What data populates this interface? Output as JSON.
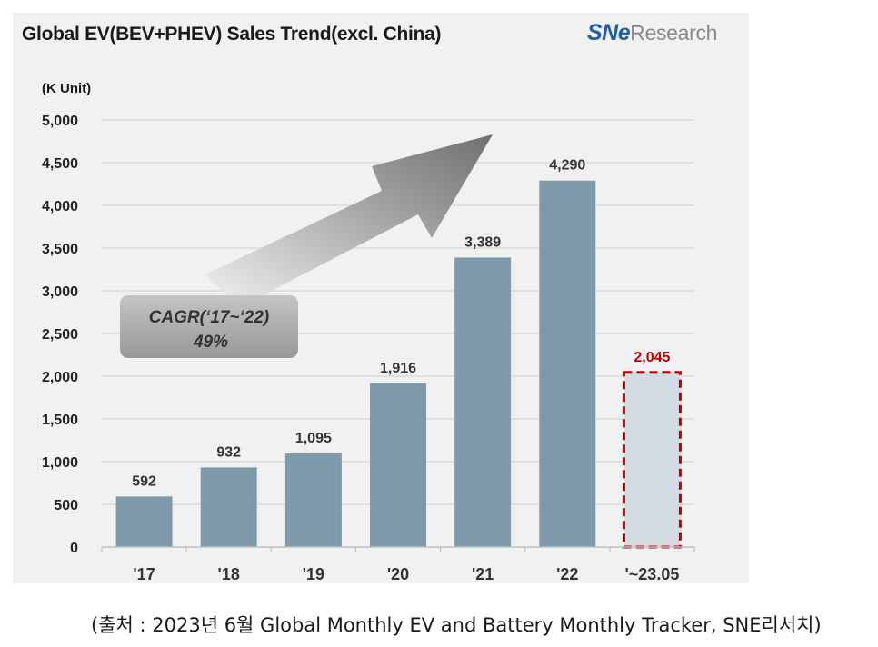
{
  "title": "Global EV(BEV+PHEV)  Sales Trend(excl. China)",
  "logo": {
    "mark": "SNe",
    "text": "Research"
  },
  "unit_label": "(K Unit)",
  "cagr_label": {
    "line1": "CAGR(‘17~‘22)",
    "line2": "49%"
  },
  "source_note": "(출처 : 2023년 6월  Global Monthly EV and Battery Monthly Tracker, SNE리서치)",
  "colors": {
    "bar": "#7f9aab",
    "bar_partial": "#d3dce2",
    "highlight": "#c00000",
    "grid": "#d6d6d6",
    "panel": "#f1f1f1"
  },
  "chart_data": {
    "type": "bar",
    "categories": [
      "'17",
      "'18",
      "'19",
      "'20",
      "'21",
      "'22",
      "'~23.05"
    ],
    "values": [
      592,
      932,
      1095,
      1916,
      3389,
      4290,
      2045
    ],
    "value_labels": [
      "592",
      "932",
      "1,095",
      "1,916",
      "3,389",
      "4,290",
      "2,045"
    ],
    "highlighted_index": 6,
    "ylim": [
      0,
      5000
    ],
    "yticks": [
      0,
      500,
      1000,
      1500,
      2000,
      2500,
      3000,
      3500,
      4000,
      4500,
      5000
    ],
    "ytick_labels": [
      "0",
      "500",
      "1,000",
      "1,500",
      "2,000",
      "2,500",
      "3,000",
      "3,500",
      "4,000",
      "4,500",
      "5,000"
    ],
    "grid": true,
    "annotation": "CAGR(‘17~‘22) 49%"
  }
}
